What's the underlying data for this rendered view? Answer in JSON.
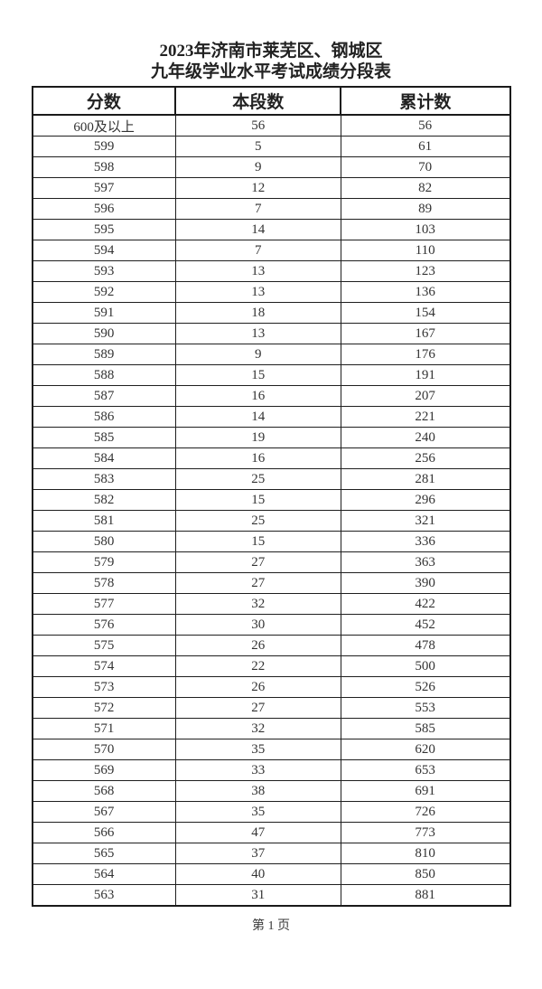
{
  "page": {
    "title_line1": "2023年济南市莱芜区、钢城区",
    "title_line2": "九年级学业水平考试成绩分段表",
    "footer": "第 1 页"
  },
  "colors": {
    "background": "#ffffff",
    "text": "#333333",
    "border": "#1a1a1a"
  },
  "table": {
    "headers": [
      "分数",
      "本段数",
      "累计数"
    ],
    "rows": [
      {
        "score": "600及以上",
        "count": "56",
        "cumulative": "56"
      },
      {
        "score": "599",
        "count": "5",
        "cumulative": "61"
      },
      {
        "score": "598",
        "count": "9",
        "cumulative": "70"
      },
      {
        "score": "597",
        "count": "12",
        "cumulative": "82"
      },
      {
        "score": "596",
        "count": "7",
        "cumulative": "89"
      },
      {
        "score": "595",
        "count": "14",
        "cumulative": "103"
      },
      {
        "score": "594",
        "count": "7",
        "cumulative": "110"
      },
      {
        "score": "593",
        "count": "13",
        "cumulative": "123"
      },
      {
        "score": "592",
        "count": "13",
        "cumulative": "136"
      },
      {
        "score": "591",
        "count": "18",
        "cumulative": "154"
      },
      {
        "score": "590",
        "count": "13",
        "cumulative": "167"
      },
      {
        "score": "589",
        "count": "9",
        "cumulative": "176"
      },
      {
        "score": "588",
        "count": "15",
        "cumulative": "191"
      },
      {
        "score": "587",
        "count": "16",
        "cumulative": "207"
      },
      {
        "score": "586",
        "count": "14",
        "cumulative": "221"
      },
      {
        "score": "585",
        "count": "19",
        "cumulative": "240"
      },
      {
        "score": "584",
        "count": "16",
        "cumulative": "256"
      },
      {
        "score": "583",
        "count": "25",
        "cumulative": "281"
      },
      {
        "score": "582",
        "count": "15",
        "cumulative": "296"
      },
      {
        "score": "581",
        "count": "25",
        "cumulative": "321"
      },
      {
        "score": "580",
        "count": "15",
        "cumulative": "336"
      },
      {
        "score": "579",
        "count": "27",
        "cumulative": "363"
      },
      {
        "score": "578",
        "count": "27",
        "cumulative": "390"
      },
      {
        "score": "577",
        "count": "32",
        "cumulative": "422"
      },
      {
        "score": "576",
        "count": "30",
        "cumulative": "452"
      },
      {
        "score": "575",
        "count": "26",
        "cumulative": "478"
      },
      {
        "score": "574",
        "count": "22",
        "cumulative": "500"
      },
      {
        "score": "573",
        "count": "26",
        "cumulative": "526"
      },
      {
        "score": "572",
        "count": "27",
        "cumulative": "553"
      },
      {
        "score": "571",
        "count": "32",
        "cumulative": "585"
      },
      {
        "score": "570",
        "count": "35",
        "cumulative": "620"
      },
      {
        "score": "569",
        "count": "33",
        "cumulative": "653"
      },
      {
        "score": "568",
        "count": "38",
        "cumulative": "691"
      },
      {
        "score": "567",
        "count": "35",
        "cumulative": "726"
      },
      {
        "score": "566",
        "count": "47",
        "cumulative": "773"
      },
      {
        "score": "565",
        "count": "37",
        "cumulative": "810"
      },
      {
        "score": "564",
        "count": "40",
        "cumulative": "850"
      },
      {
        "score": "563",
        "count": "31",
        "cumulative": "881"
      }
    ]
  }
}
